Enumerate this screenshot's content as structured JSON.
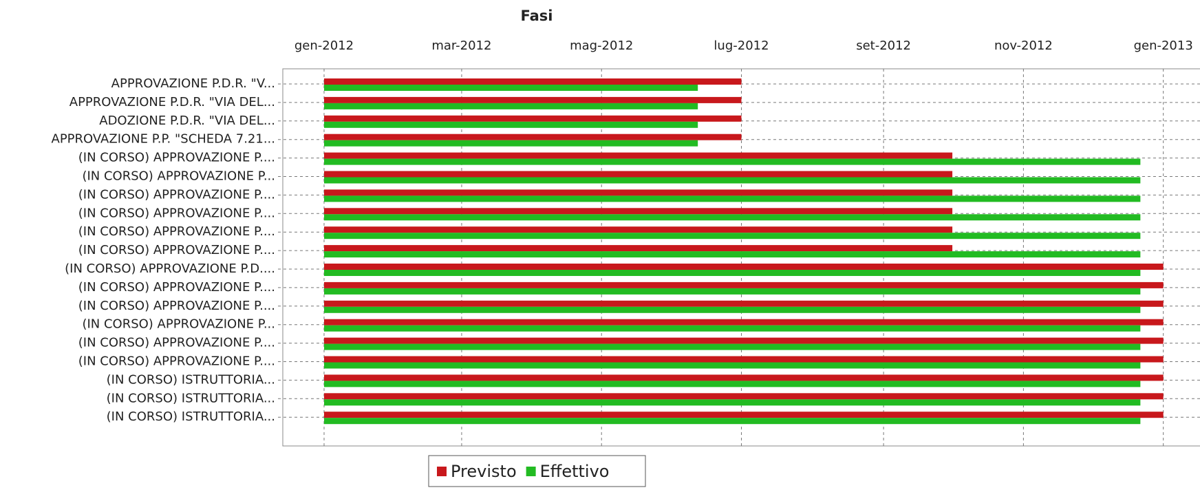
{
  "chart_data": {
    "type": "gantt",
    "title": "Fasi",
    "categories": [
      "APPROVAZIONE P.D.R. \"V...",
      "APPROVAZIONE P.D.R. \"VIA DEL...",
      "ADOZIONE P.D.R. \"VIA DEL...",
      "APPROVAZIONE P.P. \"SCHEDA 7.21...",
      "(IN CORSO) APPROVAZIONE P....",
      "(IN CORSO) APPROVAZIONE P...",
      "(IN CORSO) APPROVAZIONE P....",
      "(IN CORSO) APPROVAZIONE P....",
      "(IN CORSO) APPROVAZIONE P....",
      "(IN CORSO) APPROVAZIONE P....",
      "(IN CORSO) APPROVAZIONE P.D....",
      "(IN CORSO) APPROVAZIONE P....",
      "(IN CORSO) APPROVAZIONE P....",
      "(IN CORSO) APPROVAZIONE P...",
      "(IN CORSO) APPROVAZIONE P....",
      "(IN CORSO) APPROVAZIONE P....",
      "(IN CORSO) ISTRUTTORIA...",
      "(IN CORSO) ISTRUTTORIA...",
      "(IN CORSO) ISTRUTTORIA..."
    ],
    "series": [
      {
        "name": "Previsto",
        "color": "#c8181c",
        "start": [
          "2012-01-01",
          "2012-01-01",
          "2012-01-01",
          "2012-01-01",
          "2012-01-01",
          "2012-01-01",
          "2012-01-01",
          "2012-01-01",
          "2012-01-01",
          "2012-01-01",
          "2012-01-01",
          "2012-01-01",
          "2012-01-01",
          "2012-01-01",
          "2012-01-01",
          "2012-01-01",
          "2012-01-01",
          "2012-01-01",
          "2012-01-01"
        ],
        "end": [
          "2012-07-01",
          "2012-07-01",
          "2012-07-01",
          "2012-07-01",
          "2012-10-01",
          "2012-10-01",
          "2012-10-01",
          "2012-10-01",
          "2012-10-01",
          "2012-10-01",
          "2013-01-01",
          "2013-01-01",
          "2013-01-01",
          "2013-01-01",
          "2013-01-01",
          "2013-01-01",
          "2013-01-01",
          "2013-01-01",
          "2013-01-01"
        ]
      },
      {
        "name": "Effettivo",
        "color": "#22bb22",
        "start": [
          "2012-01-01",
          "2012-01-01",
          "2012-01-01",
          "2012-01-01",
          "2012-01-01",
          "2012-01-01",
          "2012-01-01",
          "2012-01-01",
          "2012-01-01",
          "2012-01-01",
          "2012-01-01",
          "2012-01-01",
          "2012-01-01",
          "2012-01-01",
          "2012-01-01",
          "2012-01-01",
          "2012-01-01",
          "2012-01-01",
          "2012-01-01"
        ],
        "end": [
          "2012-06-12",
          "2012-06-12",
          "2012-06-12",
          "2012-06-12",
          "2012-12-22",
          "2012-12-22",
          "2012-12-22",
          "2012-12-22",
          "2012-12-22",
          "2012-12-22",
          "2012-12-22",
          "2012-12-22",
          "2012-12-22",
          "2012-12-22",
          "2012-12-22",
          "2012-12-22",
          "2012-12-22",
          "2012-12-22",
          "2012-12-22"
        ]
      }
    ],
    "xlim": [
      "2011-12-14",
      "2013-01-17"
    ],
    "xticks": [
      {
        "value": "2012-01-01",
        "label": "gen-2012"
      },
      {
        "value": "2012-03-01",
        "label": "mar-2012"
      },
      {
        "value": "2012-05-01",
        "label": "mag-2012"
      },
      {
        "value": "2012-07-01",
        "label": "lug-2012"
      },
      {
        "value": "2012-09-01",
        "label": "set-2012"
      },
      {
        "value": "2012-11-01",
        "label": "nov-2012"
      },
      {
        "value": "2013-01-01",
        "label": "gen-2013"
      }
    ],
    "grid": true,
    "legend": "bottom"
  }
}
